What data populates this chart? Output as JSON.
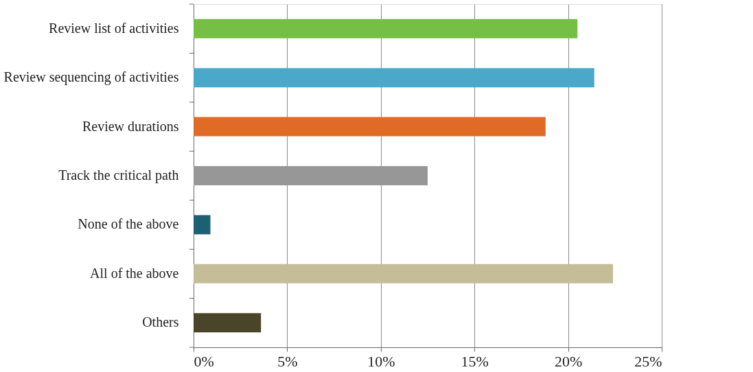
{
  "chart_data": {
    "type": "bar",
    "orientation": "horizontal",
    "categories": [
      "Review list of activities",
      "Review sequencing of activities",
      "Review durations",
      "Track the critical path",
      "None of the above",
      "All of the above",
      "Others"
    ],
    "values": [
      20.5,
      21.4,
      18.8,
      12.5,
      0.9,
      22.4,
      3.6
    ],
    "colors": [
      "#74bf44",
      "#4aa9c8",
      "#e06b26",
      "#979797",
      "#1f5f74",
      "#c4bd98",
      "#4a4528"
    ],
    "xlim": [
      0,
      25
    ],
    "xticks": [
      {
        "value": 0,
        "label": "0%"
      },
      {
        "value": 5,
        "label": "5%"
      },
      {
        "value": 10,
        "label": "10%"
      },
      {
        "value": 15,
        "label": "15%"
      },
      {
        "value": 20,
        "label": "20%"
      },
      {
        "value": 25,
        "label": "25%"
      }
    ],
    "grid": "x"
  }
}
